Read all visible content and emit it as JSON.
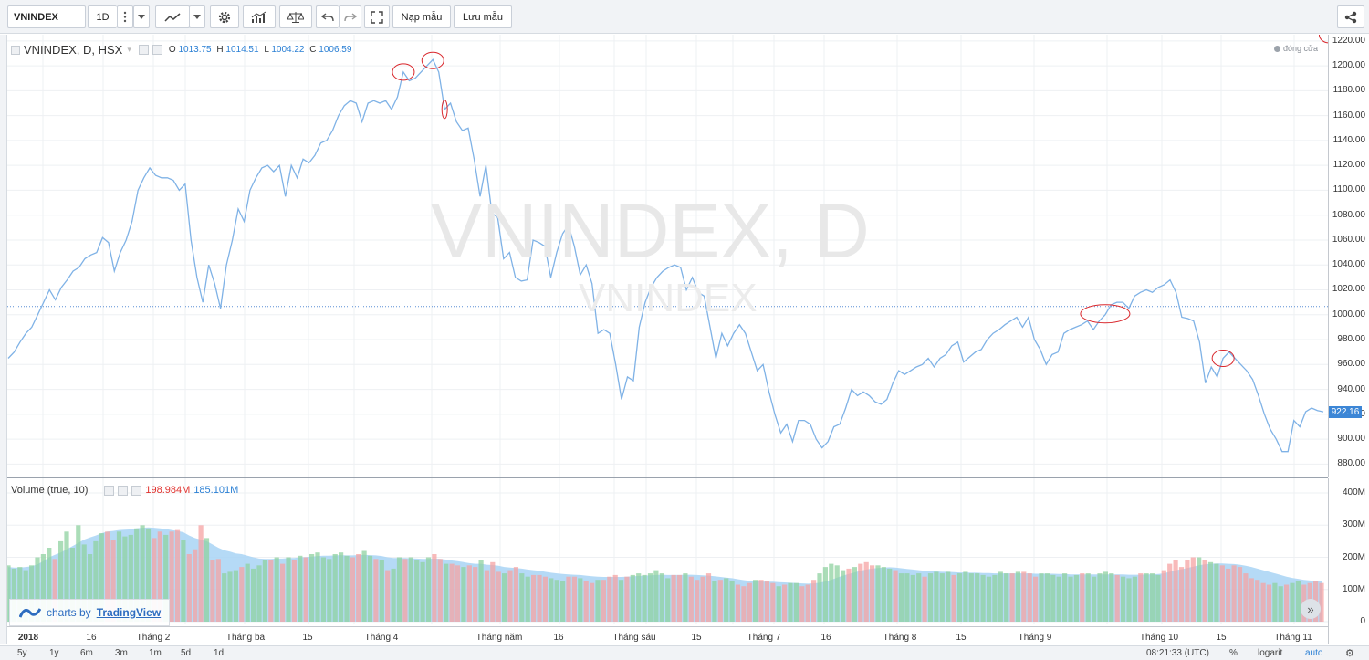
{
  "toolbar": {
    "symbol": "VNINDEX",
    "interval": "1D",
    "load_label": "Nạp mẫu",
    "save_label": "Lưu mẫu"
  },
  "legend": {
    "title": "VNINDEX, D, HSX",
    "o_label": "O",
    "o": "1013.75",
    "h_label": "H",
    "h": "1014.51",
    "l_label": "L",
    "l": "1004.22",
    "c_label": "C",
    "c": "1006.59",
    "closing": "đóng cửa"
  },
  "watermark": {
    "big": "VNINDEX, D",
    "small": "VNINDEX"
  },
  "volume_legend": {
    "title": "Volume (true, 10)",
    "v1": "198.984M",
    "v2": "185.101M"
  },
  "branding": {
    "prefix": "charts by",
    "name": "TradingView"
  },
  "price_axis": {
    "ticks": [
      "1220.00",
      "1200.00",
      "1180.00",
      "1160.00",
      "1140.00",
      "1120.00",
      "1100.00",
      "1080.00",
      "1060.00",
      "1040.00",
      "1020.00",
      "1000.00",
      "980.00",
      "960.00",
      "940.00",
      "920.00",
      "900.00",
      "880.00"
    ],
    "last_price": "922.16"
  },
  "volume_axis": {
    "ticks": [
      "400M",
      "300M",
      "200M",
      "100M",
      "0"
    ]
  },
  "time_axis": [
    "2018",
    "16",
    "Tháng 2",
    "Tháng ba",
    "15",
    "Tháng 4",
    "Tháng năm",
    "16",
    "Tháng sáu",
    "15",
    "Tháng 7",
    "16",
    "Tháng 8",
    "15",
    "Tháng 9",
    "Tháng 10",
    "15",
    "Tháng 11"
  ],
  "status_bar": {
    "ranges": [
      "5y",
      "1y",
      "6m",
      "3m",
      "1m",
      "5d",
      "1d"
    ],
    "time": "08:21:33 (UTC)",
    "percent": "%",
    "log": "logarit",
    "auto": "auto"
  },
  "colors": {
    "line": "#7fb2e6",
    "vol_up": "#8fd1a0",
    "vol_down": "#f5a3a3",
    "vol_ma": "#a8d4f5",
    "accent": "#2a7fd4",
    "circle": "#d9262b"
  },
  "chart_data": {
    "type": "line",
    "title": "VNINDEX, D, HSX",
    "ylim": [
      870,
      1225
    ],
    "series": [
      {
        "values": [
          965,
          970,
          978,
          985,
          990,
          1000,
          1010,
          1020,
          1012,
          1022,
          1028,
          1035,
          1038,
          1045,
          1048,
          1050,
          1062,
          1058,
          1035,
          1050,
          1060,
          1075,
          1100,
          1110,
          1118,
          1112,
          1110,
          1110,
          1108,
          1100,
          1105,
          1060,
          1030,
          1010,
          1040,
          1025,
          1005,
          1040,
          1060,
          1085,
          1075,
          1100,
          1110,
          1118,
          1120,
          1115,
          1120,
          1095,
          1120,
          1110,
          1125,
          1122,
          1128,
          1138,
          1140,
          1148,
          1160,
          1168,
          1172,
          1170,
          1155,
          1170,
          1172,
          1170,
          1172,
          1165,
          1175,
          1195,
          1188,
          1190,
          1195,
          1200,
          1205,
          1195,
          1165,
          1170,
          1155,
          1148,
          1150,
          1125,
          1095,
          1120,
          1082,
          1078,
          1045,
          1050,
          1030,
          1027,
          1028,
          1060,
          1058,
          1055,
          1030,
          1050,
          1065,
          1072,
          1055,
          1032,
          1040,
          1025,
          985,
          988,
          985,
          960,
          932,
          950,
          947,
          990,
          1010,
          1022,
          1030,
          1035,
          1038,
          1040,
          1038,
          1020,
          1030,
          1018,
          1015,
          990,
          965,
          985,
          975,
          985,
          992,
          985,
          970,
          955,
          960,
          938,
          920,
          905,
          912,
          898,
          915,
          915,
          912,
          900,
          893,
          898,
          910,
          912,
          925,
          940,
          935,
          938,
          935,
          930,
          928,
          932,
          945,
          955,
          952,
          955,
          958,
          960,
          965,
          958,
          965,
          968,
          975,
          978,
          962,
          966,
          970,
          972,
          980,
          985,
          988,
          992,
          995,
          998,
          990,
          998,
          980,
          972,
          960,
          968,
          970,
          985,
          988,
          990,
          992,
          995,
          988,
          995,
          1000,
          1008,
          1010,
          1010,
          1005,
          1015,
          1018,
          1020,
          1018,
          1022,
          1024,
          1028,
          1018,
          998,
          997,
          995,
          978,
          945,
          958,
          950,
          965,
          970,
          965,
          960,
          955,
          948,
          935,
          920,
          908,
          900,
          890,
          890,
          915,
          910,
          922,
          925,
          923,
          922
        ]
      }
    ],
    "volume": {
      "type": "bar",
      "ylim": [
        0,
        420
      ],
      "values": [
        175,
        165,
        170,
        160,
        175,
        200,
        210,
        230,
        195,
        250,
        280,
        230,
        300,
        240,
        210,
        250,
        275,
        280,
        255,
        280,
        265,
        270,
        290,
        300,
        290,
        260,
        280,
        270,
        280,
        285,
        255,
        210,
        225,
        300,
        260,
        190,
        195,
        150,
        155,
        160,
        170,
        180,
        165,
        175,
        190,
        190,
        200,
        180,
        200,
        190,
        205,
        200,
        210,
        215,
        200,
        195,
        210,
        215,
        205,
        200,
        210,
        220,
        205,
        195,
        190,
        160,
        165,
        200,
        195,
        200,
        190,
        185,
        200,
        210,
        195,
        180,
        180,
        175,
        170,
        175,
        170,
        190,
        160,
        185,
        155,
        150,
        160,
        170,
        150,
        140,
        145,
        145,
        140,
        135,
        130,
        125,
        140,
        140,
        135,
        125,
        120,
        130,
        130,
        140,
        145,
        130,
        140,
        145,
        150,
        145,
        150,
        160,
        150,
        135,
        145,
        145,
        150,
        140,
        130,
        140,
        150,
        125,
        130,
        135,
        125,
        115,
        110,
        120,
        130,
        130,
        125,
        120,
        110,
        115,
        120,
        120,
        110,
        115,
        130,
        150,
        170,
        180,
        175,
        160,
        165,
        170,
        180,
        185,
        175,
        175,
        170,
        165,
        160,
        150,
        150,
        145,
        150,
        140,
        150,
        155,
        150,
        155,
        145,
        150,
        155,
        150,
        150,
        145,
        140,
        145,
        155,
        150,
        150,
        155,
        155,
        150,
        140,
        150,
        150,
        145,
        140,
        150,
        140,
        145,
        150,
        150,
        140,
        150,
        155,
        150,
        145,
        140,
        135,
        140,
        150,
        150,
        150,
        145,
        160,
        180,
        190,
        170,
        190,
        200,
        200,
        190,
        185,
        180,
        175,
        165,
        175,
        170,
        150,
        135,
        130,
        120,
        115,
        120,
        110,
        115,
        120,
        125,
        115,
        120,
        125,
        120
      ],
      "ma": [
        170,
        168,
        168,
        170,
        172,
        178,
        188,
        200,
        208,
        215,
        225,
        235,
        245,
        255,
        262,
        268,
        275,
        280,
        282,
        285,
        286,
        287,
        290,
        292,
        293,
        292,
        290,
        288,
        285,
        282,
        278,
        268,
        260,
        255,
        250,
        240,
        230,
        222,
        218,
        212,
        210,
        205,
        200,
        196,
        195,
        195,
        196,
        196,
        198,
        198,
        200,
        201,
        202,
        204,
        205,
        205,
        206,
        207,
        206,
        206,
        207,
        208,
        207,
        206,
        204,
        200,
        198,
        198,
        198,
        197,
        196,
        195,
        195,
        196,
        195,
        193,
        190,
        188,
        185,
        182,
        180,
        180,
        177,
        176,
        174,
        170,
        168,
        167,
        165,
        162,
        160,
        158,
        155,
        152,
        150,
        148,
        147,
        146,
        145,
        143,
        141,
        140,
        139,
        139,
        139,
        139,
        140,
        141,
        142,
        143,
        144,
        145,
        146,
        145,
        145,
        145,
        146,
        146,
        145,
        144,
        143,
        141,
        139,
        137,
        135,
        132,
        129,
        127,
        126,
        125,
        124,
        124,
        123,
        122,
        121,
        120,
        119,
        118,
        119,
        121,
        125,
        130,
        137,
        143,
        148,
        153,
        158,
        162,
        165,
        167,
        168,
        169,
        168,
        166,
        164,
        162,
        160,
        158,
        157,
        156,
        155,
        155,
        154,
        153,
        153,
        152,
        152,
        151,
        151,
        150,
        150,
        150,
        150,
        150,
        150,
        150,
        149,
        149,
        149,
        149,
        148,
        148,
        147,
        147,
        147,
        147,
        147,
        147,
        147,
        147,
        147,
        147,
        146,
        146,
        146,
        147,
        147,
        148,
        150,
        155,
        160,
        163,
        167,
        171,
        175,
        178,
        180,
        181,
        181,
        180,
        179,
        177,
        174,
        170,
        165,
        160,
        155,
        150,
        145,
        140,
        136,
        133,
        130,
        128,
        126,
        125
      ]
    }
  }
}
